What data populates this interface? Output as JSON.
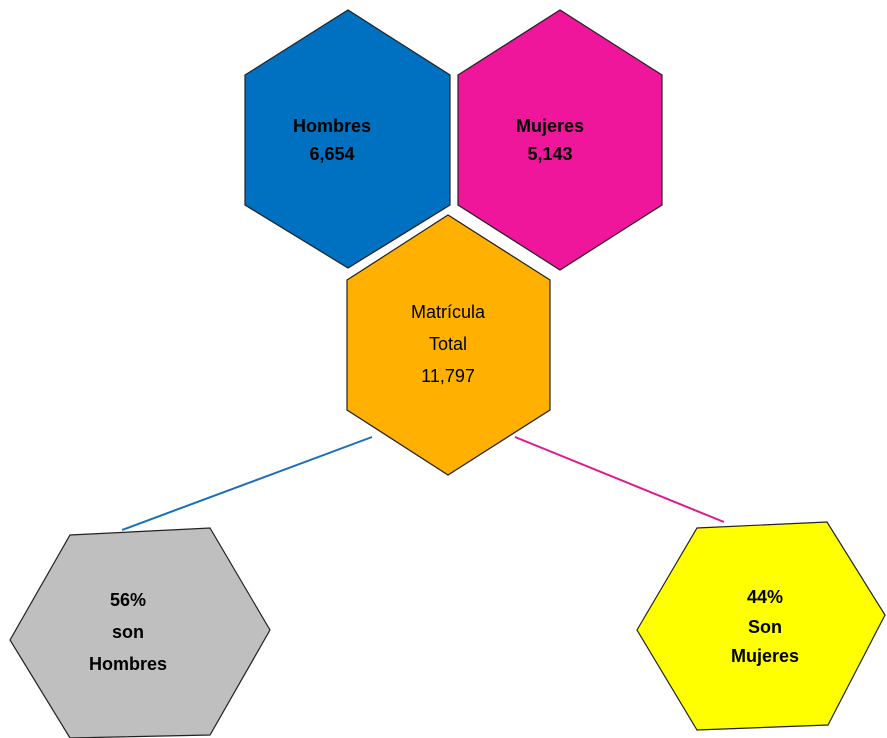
{
  "nodes": [
    {
      "lines": [
        "Hombres",
        "6,654"
      ]
    },
    {
      "lines": [
        "Mujeres",
        "5,143"
      ]
    },
    {
      "lines": [
        "Matrícula",
        "Total",
        "11,797"
      ]
    },
    {
      "lines": [
        "56%",
        "son",
        "Hombres"
      ]
    },
    {
      "lines": [
        "44%",
        "Son",
        "Mujeres"
      ]
    }
  ]
}
